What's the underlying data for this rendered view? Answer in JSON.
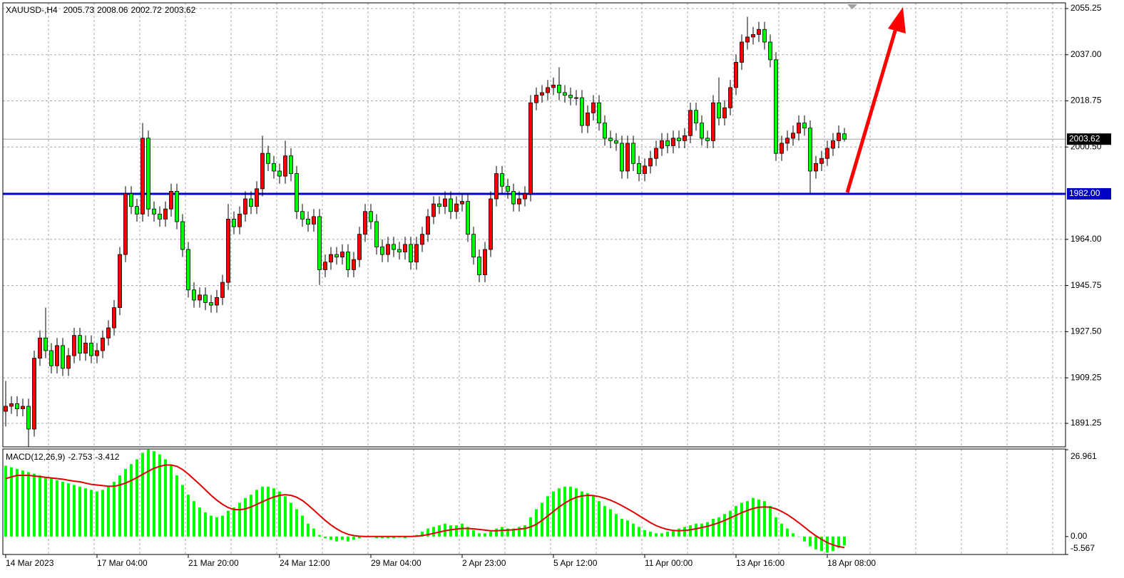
{
  "chart_data": [
    {
      "type": "candlestick",
      "symbol": "XAUUSD-,H4",
      "open": [
        1896,
        1898,
        1899,
        1897,
        1898,
        1889,
        1917,
        1925,
        1920,
        1914,
        1922,
        1913,
        1918,
        1926,
        1919,
        1923,
        1918,
        1920,
        1925,
        1929,
        1937,
        1958,
        1982,
        1977,
        1974,
        2004,
        1976,
        1974,
        1972,
        1976,
        1983,
        1971,
        1960,
        1944,
        1940,
        1942,
        1939,
        1938,
        1941,
        1947,
        1972,
        1969,
        1974,
        1980,
        1977,
        1984,
        1998,
        1994,
        1991,
        1989,
        1997,
        1990,
        1975,
        1972,
        1970,
        1973,
        1952,
        1955,
        1958,
        1957,
        1959,
        1952,
        1956,
        1966,
        1975,
        1971,
        1961,
        1958,
        1962,
        1960,
        1959,
        1962,
        1955,
        1962,
        1966,
        1973,
        1978,
        1977,
        1980,
        1975,
        1978,
        1979,
        1966,
        1957,
        1950,
        1960,
        1980,
        1990,
        1985,
        1983,
        1978,
        1980,
        1982,
        2018,
        2021,
        2022,
        2024,
        2025,
        2022,
        2021,
        2020,
        2020,
        2009,
        2014,
        2018,
        2010,
        2004,
        2003,
        2002,
        1991,
        2002,
        1994,
        1990,
        1993,
        1996,
        2000,
        2003,
        2001,
        2004,
        2003,
        2005,
        2015,
        2010,
        2004,
        2003,
        2018,
        2012,
        2016,
        2024,
        2034,
        2042,
        2044,
        2045,
        2047,
        2042,
        2035,
        1998,
        2002,
        2004,
        2006,
        2010,
        2008,
        1991,
        1994,
        1996,
        2000,
        2003,
        2005.73
      ],
      "high": [
        1908,
        1902,
        1902,
        1901,
        1901,
        1920,
        1928,
        1937,
        1923,
        1925,
        1925,
        1921,
        1929,
        1929,
        1926,
        1926,
        1923,
        1928,
        1932,
        1940,
        1961,
        1985,
        1985,
        1980,
        2010,
        2007,
        1979,
        1977,
        1979,
        1986,
        1986,
        1974,
        1963,
        1947,
        1945,
        1945,
        1942,
        1944,
        1950,
        1978,
        1975,
        1977,
        1983,
        1983,
        1987,
        2005,
        2001,
        1997,
        1994,
        2003,
        2000,
        1993,
        1978,
        1975,
        1976,
        1976,
        1958,
        1961,
        1961,
        1962,
        1962,
        1959,
        1969,
        1978,
        1978,
        1974,
        1964,
        1965,
        1965,
        1963,
        1965,
        1965,
        1965,
        1969,
        1976,
        1981,
        1981,
        1983,
        1983,
        1981,
        1982,
        1982,
        1969,
        1960,
        1963,
        1983,
        1993,
        1993,
        1988,
        1986,
        1983,
        1985,
        2021,
        2024,
        2025,
        2027,
        2028,
        2032,
        2025,
        2024,
        2023,
        2023,
        2017,
        2021,
        2021,
        2013,
        2007,
        2006,
        2005,
        2005,
        2005,
        1997,
        1996,
        1999,
        2003,
        2006,
        2006,
        2007,
        2007,
        2008,
        2018,
        2018,
        2013,
        2007,
        2021,
        2028,
        2019,
        2027,
        2037,
        2045,
        2052,
        2048,
        2050,
        2050,
        2045,
        2038,
        2005,
        2007,
        2009,
        2013,
        2013,
        2011,
        1997,
        1999,
        2003,
        2006,
        2009,
        2008.06
      ],
      "low": [
        1890,
        1895,
        1894,
        1894,
        1882,
        1886,
        1914,
        1917,
        1911,
        1911,
        1910,
        1910,
        1915,
        1916,
        1916,
        1915,
        1915,
        1917,
        1922,
        1926,
        1934,
        1955,
        1974,
        1971,
        1971,
        1973,
        1971,
        1969,
        1969,
        1973,
        1968,
        1957,
        1941,
        1937,
        1937,
        1936,
        1935,
        1935,
        1938,
        1944,
        1966,
        1966,
        1971,
        1974,
        1974,
        1981,
        1991,
        1988,
        1986,
        1986,
        1987,
        1972,
        1969,
        1967,
        1967,
        1946,
        1949,
        1952,
        1954,
        1954,
        1949,
        1949,
        1953,
        1963,
        1968,
        1958,
        1955,
        1955,
        1957,
        1956,
        1956,
        1952,
        1952,
        1959,
        1963,
        1970,
        1974,
        1974,
        1972,
        1972,
        1975,
        1963,
        1954,
        1947,
        1947,
        1957,
        1977,
        1982,
        1980,
        1975,
        1975,
        1977,
        1979,
        2015,
        2018,
        2019,
        2021,
        2019,
        2018,
        2017,
        2017,
        2006,
        2006,
        2011,
        2007,
        2001,
        2000,
        1999,
        1988,
        1988,
        1991,
        1987,
        1987,
        1990,
        1993,
        1997,
        1998,
        1998,
        2000,
        2000,
        2002,
        2007,
        2001,
        2000,
        2000,
        2009,
        2009,
        2013,
        2021,
        2031,
        2039,
        2041,
        2042,
        2039,
        2032,
        1995,
        1995,
        1999,
        2001,
        2003,
        2005,
        1982,
        1988,
        1991,
        1993,
        1997,
        2000,
        2002.72
      ],
      "close": [
        1898,
        1899,
        1897,
        1898,
        1889,
        1917,
        1925,
        1920,
        1914,
        1922,
        1913,
        1918,
        1926,
        1919,
        1923,
        1918,
        1920,
        1925,
        1929,
        1937,
        1958,
        1982,
        1977,
        1974,
        2004,
        1976,
        1974,
        1972,
        1976,
        1983,
        1971,
        1960,
        1944,
        1940,
        1942,
        1939,
        1938,
        1941,
        1947,
        1972,
        1969,
        1974,
        1980,
        1977,
        1984,
        1998,
        1994,
        1991,
        1989,
        1997,
        1990,
        1975,
        1972,
        1970,
        1973,
        1952,
        1955,
        1958,
        1957,
        1959,
        1952,
        1956,
        1966,
        1975,
        1971,
        1961,
        1958,
        1962,
        1960,
        1959,
        1962,
        1955,
        1962,
        1966,
        1973,
        1978,
        1977,
        1980,
        1975,
        1978,
        1979,
        1966,
        1957,
        1950,
        1960,
        1980,
        1990,
        1985,
        1983,
        1978,
        1980,
        1982,
        2018,
        2021,
        2022,
        2024,
        2025,
        2022,
        2021,
        2020,
        2020,
        2009,
        2014,
        2018,
        2010,
        2004,
        2003,
        2002,
        1991,
        2002,
        1994,
        1990,
        1993,
        1996,
        2000,
        2003,
        2001,
        2004,
        2003,
        2005,
        2015,
        2010,
        2004,
        2003,
        2018,
        2012,
        2016,
        2024,
        2034,
        2042,
        2044,
        2045,
        2047,
        2042,
        2035,
        1998,
        2002,
        2004,
        2006,
        2010,
        2008,
        1991,
        1994,
        1996,
        2000,
        2003,
        2006,
        2003.62
      ],
      "up_color": "#ff0000",
      "down_color": "#00ff00",
      "ylim": [
        1881.95,
        2057.5
      ],
      "yticks": [
        2055.25,
        {
          "value": 2037,
          "label": "2037.00"
        },
        2018.75,
        {
          "value": 2000.5,
          "label": "2000.50"
        },
        {
          "value": 1964,
          "label": "1964.00"
        },
        1945.75,
        {
          "value": 1927.5,
          "label": "1927.50"
        },
        1909.25,
        1891.25
      ],
      "xlim": [
        -0.5,
        185.75
      ],
      "xticks": [
        {
          "value": 0,
          "label": "14 Mar 2023"
        },
        {
          "value": 16,
          "label": "17 Mar 04:00"
        },
        {
          "value": 32,
          "label": "21 Mar 20:00"
        },
        {
          "value": 48,
          "label": "24 Mar 12:00"
        },
        {
          "value": 64,
          "label": "29 Mar 04:00"
        },
        {
          "value": 80,
          "label": "2 Apr 23:00"
        },
        {
          "value": 96,
          "label": "5 Apr 12:00"
        },
        {
          "value": 112,
          "label": "11 Apr 00:00"
        },
        {
          "value": 128,
          "label": "13 Apr 16:00"
        },
        {
          "value": 144,
          "label": "18 Apr 08:00"
        }
      ],
      "grid": true,
      "hline": {
        "value": 1982,
        "label": "1982.00",
        "color": "#0000c8"
      }
    },
    {
      "type": "macd",
      "label": "MACD(12,26,9)",
      "histogram": {
        "color": "#00ff00",
        "values": [
          22,
          21.5,
          21,
          20.5,
          20,
          19.5,
          19,
          18.5,
          18,
          17.5,
          17,
          16.5,
          16,
          15.5,
          15,
          14.5,
          14,
          14.5,
          15.5,
          17,
          19,
          21,
          22.5,
          24,
          26,
          27,
          26.5,
          25.5,
          24,
          22,
          19,
          16,
          13,
          11,
          9,
          7.5,
          6.5,
          6,
          6.5,
          8,
          9,
          10.5,
          12,
          13,
          14.5,
          15.5,
          15.5,
          15,
          14,
          12.5,
          10.5,
          8.5,
          6.5,
          4,
          2.5,
          0.5,
          -0.5,
          -1,
          -1.5,
          -1,
          -1.5,
          -1,
          -0.5,
          0,
          0,
          -0.5,
          -0.5,
          -0.5,
          -0.5,
          -0.3,
          -0.5,
          0,
          0.5,
          1.5,
          2.5,
          3,
          3.5,
          4,
          3.5,
          3.5,
          4,
          3,
          2,
          1,
          1,
          1.5,
          2.5,
          3,
          2.5,
          2.5,
          3,
          3.5,
          6,
          8.5,
          10.5,
          12.5,
          14,
          15,
          15.5,
          15.5,
          15,
          14,
          13.5,
          12.5,
          11,
          9.5,
          8.5,
          7,
          5.5,
          5,
          4,
          3,
          2,
          1.5,
          1,
          1,
          1.5,
          2,
          2.5,
          3,
          3.5,
          4,
          4,
          4.5,
          5.5,
          6,
          7,
          8,
          9.5,
          10.5,
          11,
          12,
          11.5,
          11,
          9.5,
          6,
          4,
          2.5,
          1,
          0,
          -1.5,
          -3,
          -4,
          -4.5,
          -5,
          -4.5,
          -3.5,
          -2.753
        ]
      },
      "signal": {
        "color": "#e00000",
        "values": [
          18,
          18.5,
          19,
          19,
          19,
          18.8,
          18.6,
          18.4,
          18.2,
          18,
          17.8,
          17.5,
          17.2,
          17,
          16.6,
          16.2,
          16,
          15.8,
          15.6,
          15.6,
          16,
          16.6,
          17.4,
          18.3,
          19.3,
          20.3,
          21.2,
          21.8,
          22.2,
          22.2,
          21.8,
          20.8,
          19.4,
          17.8,
          16.2,
          14.5,
          12.8,
          11.3,
          10,
          9,
          8.4,
          8.3,
          8.6,
          9.2,
          10,
          10.8,
          11.6,
          12.3,
          12.8,
          13,
          12.8,
          12.2,
          11.2,
          9.8,
          8.2,
          6.6,
          5,
          3.6,
          2.4,
          1.4,
          0.7,
          0.3,
          0.1,
          0,
          0,
          0,
          0,
          0,
          0,
          0,
          0,
          0,
          0.1,
          0.3,
          0.6,
          1,
          1.4,
          1.8,
          2.1,
          2.3,
          2.5,
          2.5,
          2.4,
          2.2,
          2,
          1.8,
          1.8,
          1.9,
          2,
          2.1,
          2.3,
          2.5,
          3,
          3.8,
          5,
          6.4,
          7.8,
          9.2,
          10.4,
          11.4,
          12.2,
          12.6,
          12.8,
          12.7,
          12.4,
          11.9,
          11.3,
          10.5,
          9.6,
          8.6,
          7.6,
          6.5,
          5.4,
          4.3,
          3.4,
          2.7,
          2.2,
          1.9,
          1.8,
          1.9,
          2.1,
          2.4,
          2.8,
          3.2,
          3.7,
          4.3,
          5,
          5.8,
          6.6,
          7.4,
          8.1,
          8.7,
          9.1,
          9.2,
          9.1,
          8.6,
          7.8,
          6.8,
          5.6,
          4.3,
          2.9,
          1.5,
          0.2,
          -0.9,
          -1.9,
          -2.6,
          -3.1,
          -3.412
        ]
      },
      "ylim": [
        -5.567,
        26.961
      ],
      "yticks": [
        26.961,
        {
          "value": 0,
          "label": "0.00"
        },
        -5.567
      ]
    }
  ]
}
